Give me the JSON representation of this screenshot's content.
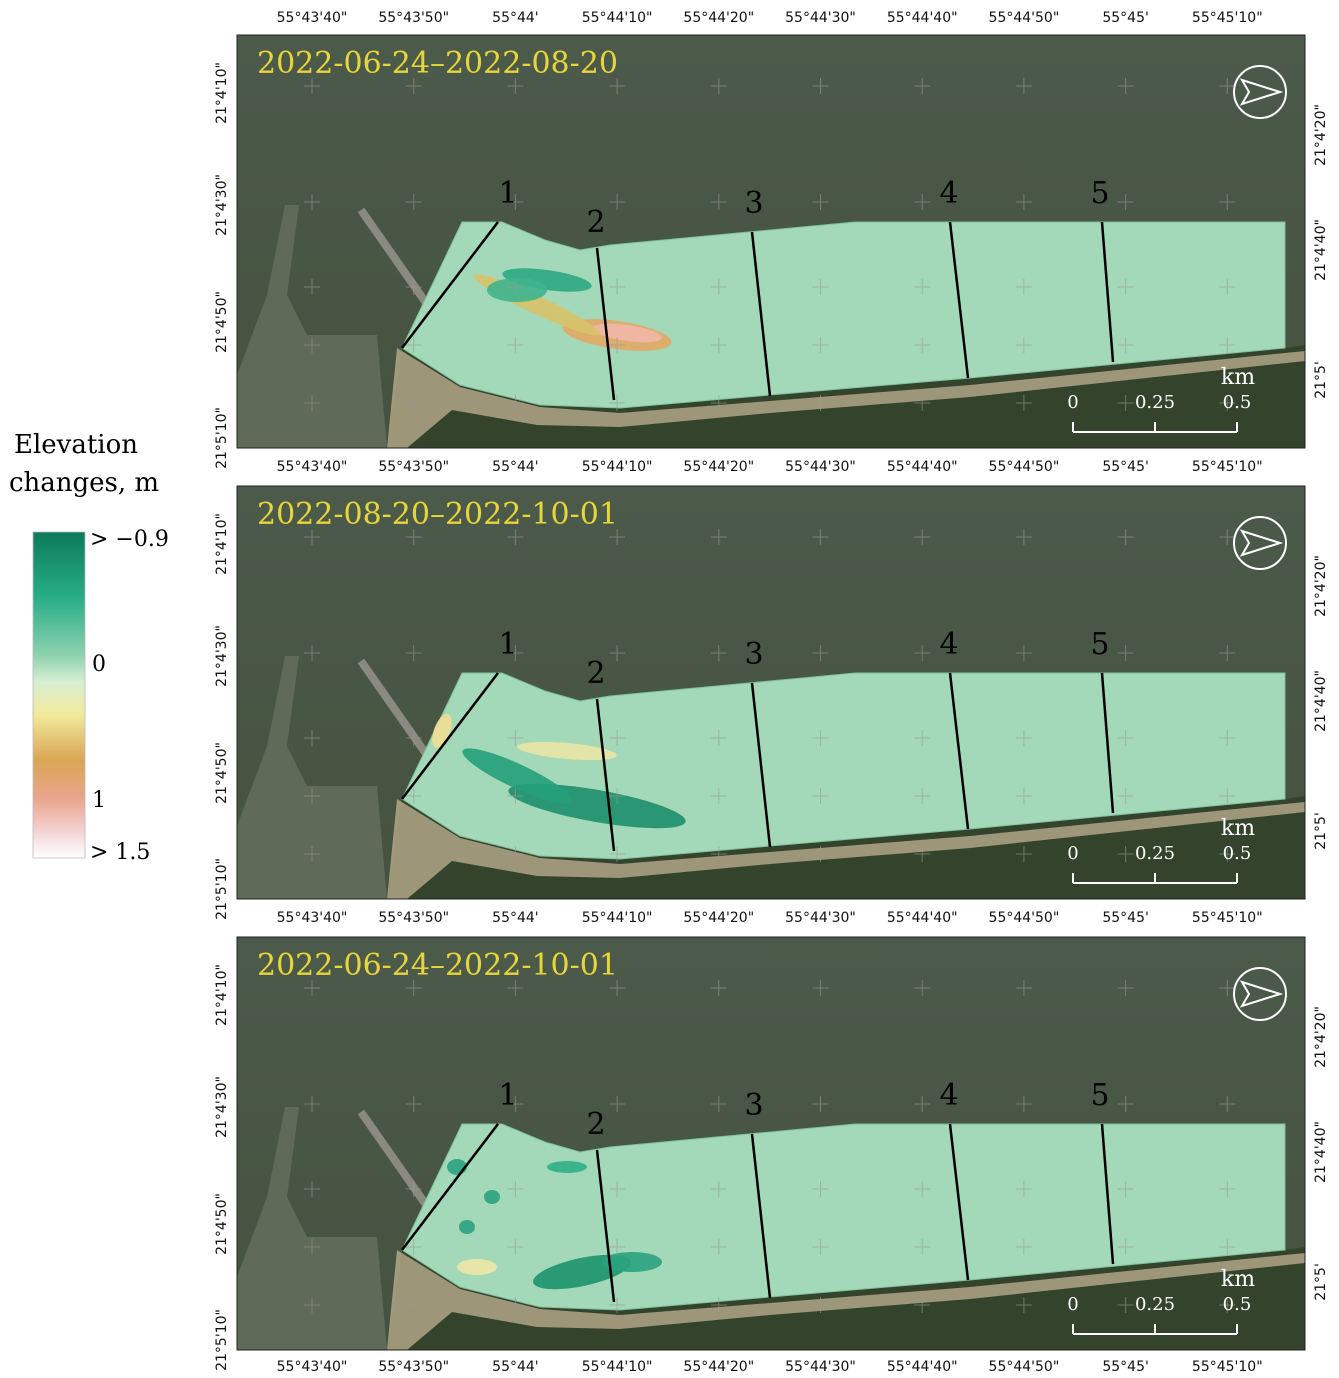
{
  "legend": {
    "title": [
      "Elevation",
      "changes, m"
    ],
    "labels": [
      "> −0.9",
      "0",
      "1",
      "> 1.5"
    ]
  },
  "longitude_labels": [
    "55°43'40\"",
    "55°43'50\"",
    "55°44'",
    "55°44'10\"",
    "55°44'20\"",
    "55°44'30\"",
    "55°44'40\"",
    "55°44'50\"",
    "55°45'",
    "55°45'10\""
  ],
  "latitude_labels_left": [
    "21°4'10\"",
    "21°4'30\"",
    "21°4'50\"",
    "21°5'10\""
  ],
  "latitude_labels_right": [
    "21°4'20\"",
    "21°4'40\"",
    "21°5'"
  ],
  "panels": [
    {
      "title": "2022-06-24–2022-08-20"
    },
    {
      "title": "2022-08-20–2022-10-01"
    },
    {
      "title": "2022-06-24–2022-10-01"
    }
  ],
  "transect_labels": [
    "1",
    "2",
    "3",
    "4",
    "5"
  ],
  "scale_bar": {
    "unit": "km",
    "labels": [
      "0",
      "0.25",
      "0.5"
    ]
  }
}
